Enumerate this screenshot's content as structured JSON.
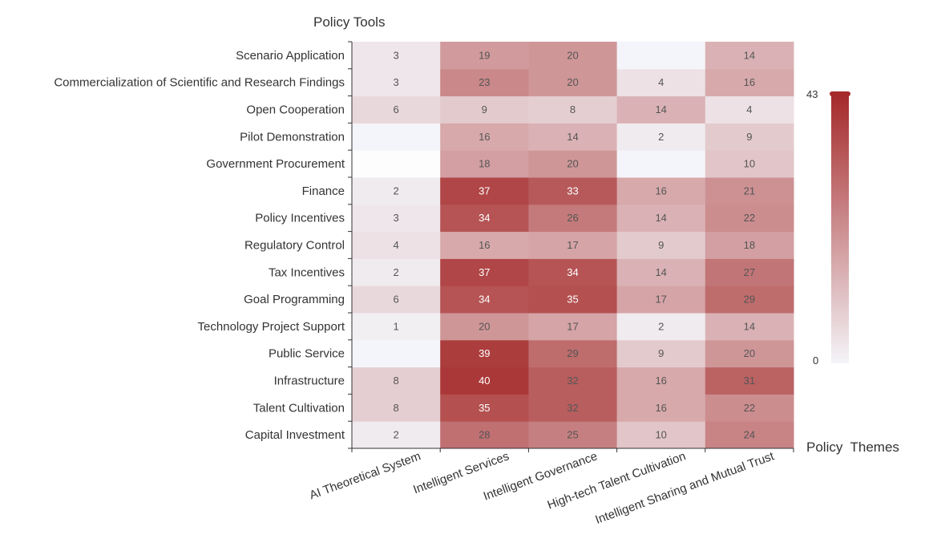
{
  "chart_data": {
    "type": "heatmap",
    "ylabel": "Policy Tools",
    "xlabel": "Policy  Themes",
    "x_categories": [
      "AI Theoretical System",
      "Intelligent Services",
      "Intelligent Governance",
      "High-tech Talent Cultivation",
      "Intelligent Sharing and Mutual Trust"
    ],
    "y_categories": [
      "Capital Investment",
      "Talent Cultivation",
      "Infrastructure",
      "Public Service",
      "Technology Project Support",
      "Goal Programming",
      "Tax Incentives",
      "Regulatory Control",
      "Policy Incentives",
      "Finance",
      "Government Procurement",
      "Pilot Demonstration",
      "Open Cooperation",
      "Commercialization of Scientific and Research Findings",
      "Scenario Application"
    ],
    "values": [
      [
        2,
        28,
        25,
        10,
        24
      ],
      [
        8,
        35,
        32,
        16,
        22
      ],
      [
        8,
        40,
        32,
        16,
        31
      ],
      [
        0,
        39,
        29,
        9,
        20
      ],
      [
        1,
        20,
        17,
        2,
        14
      ],
      [
        6,
        34,
        35,
        17,
        29
      ],
      [
        2,
        37,
        34,
        14,
        27
      ],
      [
        4,
        16,
        17,
        9,
        18
      ],
      [
        3,
        34,
        26,
        14,
        22
      ],
      [
        2,
        37,
        33,
        16,
        21
      ],
      [
        0,
        18,
        20,
        0,
        10
      ],
      [
        0,
        16,
        14,
        2,
        9
      ],
      [
        6,
        9,
        8,
        14,
        4
      ],
      [
        3,
        23,
        20,
        4,
        16
      ],
      [
        3,
        19,
        20,
        0,
        14
      ]
    ],
    "visual_map": {
      "min": 0,
      "max": 43,
      "min_label": "0",
      "max_label": "43"
    },
    "colors": {
      "low": "#f4f4f8",
      "high": "#a52a2a",
      "grid_line": "#333333",
      "label_light": "#ffffff",
      "label_dark": "#555555"
    }
  }
}
